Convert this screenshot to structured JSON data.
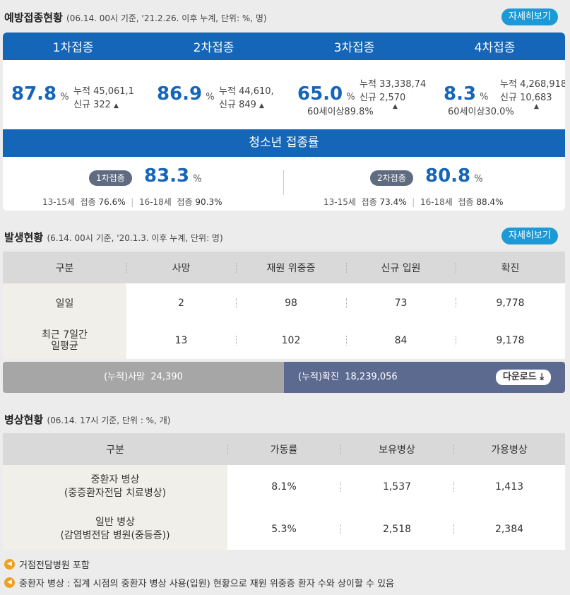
{
  "vaccination": {
    "title": "예방접종현황",
    "subtitle": "(06.14. 00시 기준, '21.2.26. 이후 누계, 단위: %, 명)",
    "more_label": "자세히보기",
    "doses": [
      {
        "label": "1차접종",
        "rate": "87.8",
        "unit": "%",
        "cumulative_label": "누적",
        "cumulative": "45,061,1",
        "new_label": "신규",
        "new": "322",
        "arrow": "▲",
        "age_note": ""
      },
      {
        "label": "2차접종",
        "rate": "86.9",
        "unit": "%",
        "cumulative_label": "누적",
        "cumulative": "44,610,",
        "new_label": "신규",
        "new": "849",
        "arrow": "▲",
        "age_note": ""
      },
      {
        "label": "3차접종",
        "rate": "65.0",
        "unit": "%",
        "cumulative_label": "누적",
        "cumulative": "33,338,74",
        "new_label": "신규",
        "new": "2,570",
        "arrow": "▲",
        "age_note": "60세이상89.8%"
      },
      {
        "label": "4차접종",
        "rate": "8.3",
        "unit": "%",
        "cumulative_label": "누적",
        "cumulative": "4,268,918",
        "new_label": "신규",
        "new": "10,683",
        "arrow": "▲",
        "age_note": "60세이상30.0%"
      }
    ],
    "teen": {
      "title": "청소년 접종률",
      "blocks": [
        {
          "pill": "1차접종",
          "rate": "83.3",
          "unit": "%",
          "a_age": "13-15세",
          "a_label": "접종",
          "a_val": "76.6%",
          "b_age": "16-18세",
          "b_label": "접종",
          "b_val": "90.3%"
        },
        {
          "pill": "2차접종",
          "rate": "80.8",
          "unit": "%",
          "a_age": "13-15세",
          "a_label": "접종",
          "a_val": "73.4%",
          "b_age": "16-18세",
          "b_label": "접종",
          "b_val": "88.4%"
        }
      ]
    }
  },
  "occurrence": {
    "title": "발생현황",
    "subtitle": "(6.14. 00시 기준, '20.1.3. 이후 누계, 단위: 명)",
    "more_label": "자세히보기",
    "headers": [
      "구분",
      "사망",
      "재원 위중증",
      "신규 입원",
      "확진"
    ],
    "rows": [
      {
        "label": "일일",
        "values": [
          "2",
          "98",
          "73",
          "9,778"
        ]
      },
      {
        "label": "최근 7일간\n일평균",
        "values": [
          "13",
          "102",
          "84",
          "9,178"
        ]
      }
    ],
    "cum_death_label": "(누적)사망",
    "cum_death": "24,390",
    "cum_confirmed_label": "(누적)확진",
    "cum_confirmed": "18,239,056",
    "download_label": "다운로드"
  },
  "beds": {
    "title": "병상현황",
    "subtitle": "(06.14. 17시 기준, 단위 : %, 개)",
    "headers": [
      "구분",
      "가동률",
      "보유병상",
      "가용병상"
    ],
    "rows": [
      {
        "label": "중환자 병상\n(중증환자전담 치료병상)",
        "values": [
          "8.1%",
          "1,537",
          "1,413"
        ]
      },
      {
        "label": "일반 병상\n(감염병전담 병원(중등증))",
        "values": [
          "5.3%",
          "2,518",
          "2,384"
        ]
      }
    ],
    "notes": [
      "거점전담병원 포함",
      "중환자 병상 : 집계 시점의 중환자 병상 사용(입원) 현황으로 재원 위중증 환자 수와 상이할 수 있음"
    ]
  },
  "colors": {
    "primary": "#1565b8",
    "accent": "#1d9ad6",
    "death_bar": "#a6a6a6",
    "confirmed_bar": "#5d6a8f"
  }
}
